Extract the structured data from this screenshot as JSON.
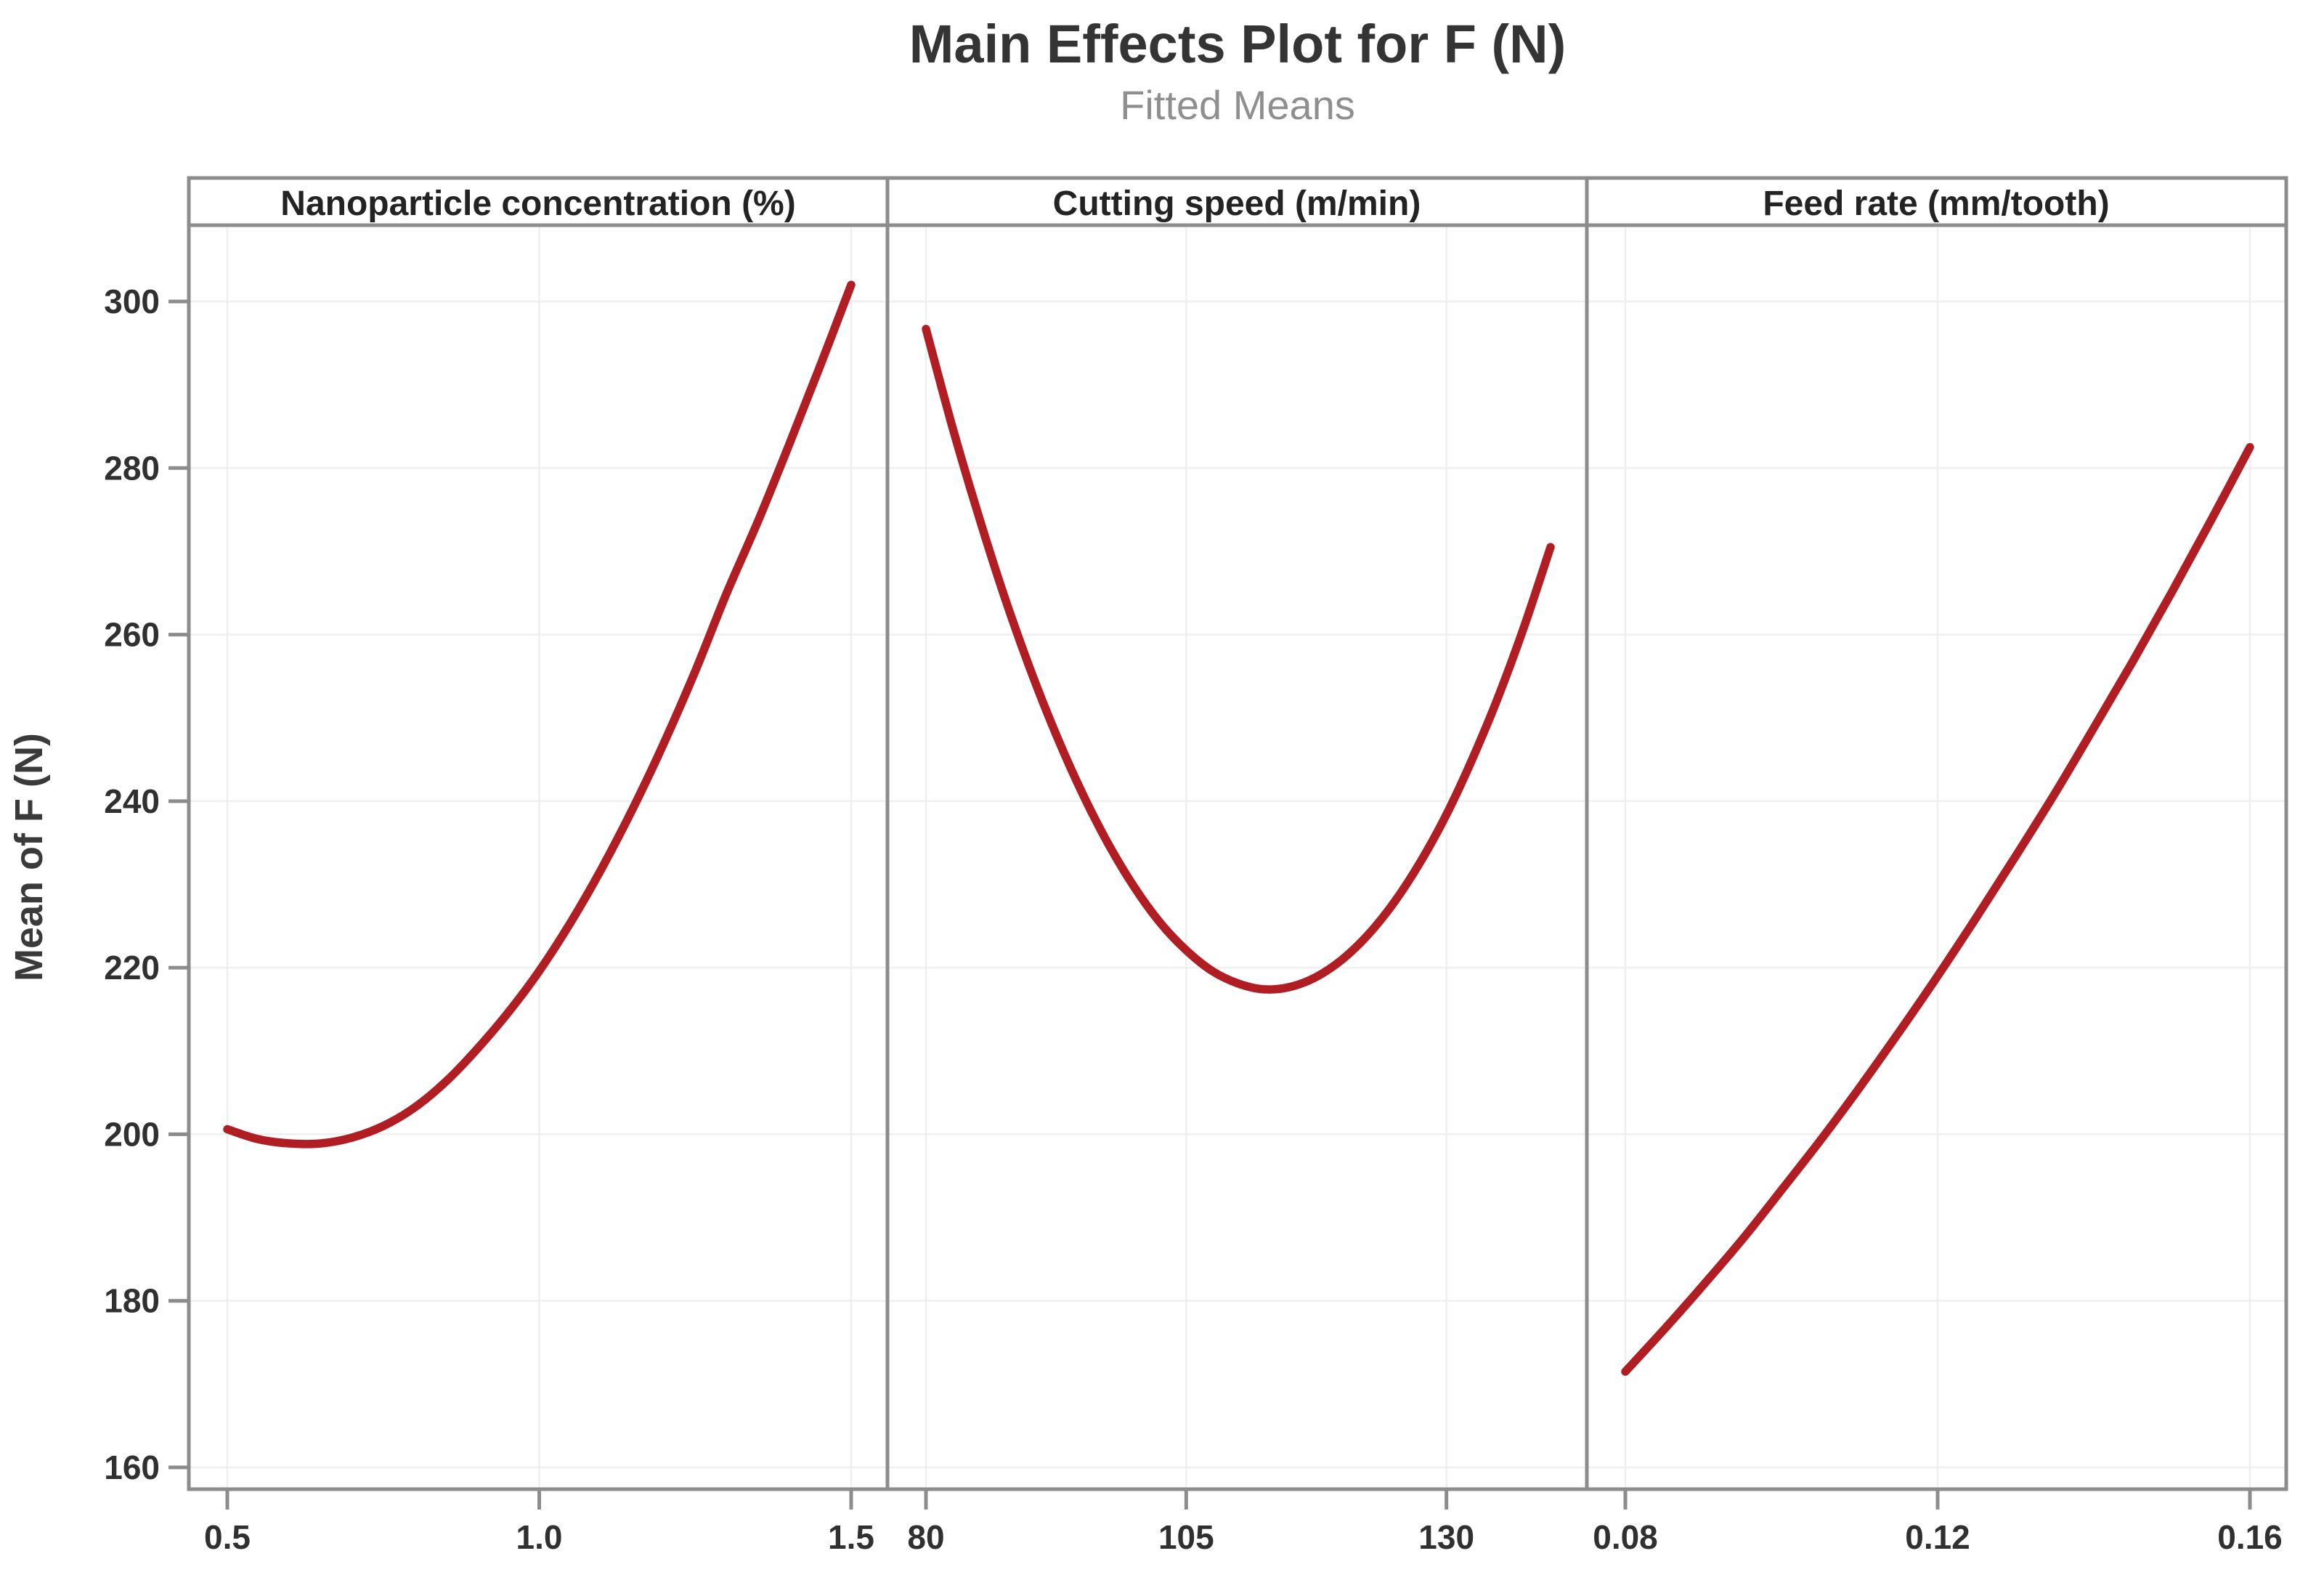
{
  "chart_data": {
    "type": "line",
    "title": "Main Effects Plot for F (N)",
    "subtitle": "Fitted Means",
    "ylabel": "Mean of F (N)",
    "y_axis": {
      "ticks": [
        "160",
        "180",
        "200",
        "220",
        "240",
        "260",
        "280",
        "300"
      ],
      "min": 160,
      "max": 300,
      "grid": true
    },
    "legend": "none",
    "line_color": "#B01E24",
    "panels": [
      {
        "label": "Nanoparticle concentration (%)",
        "x_range": [
          0.5,
          1.5
        ],
        "x_ticks": [
          {
            "value": 0.5,
            "label": "0.5"
          },
          {
            "value": 1.0,
            "label": "1.0"
          },
          {
            "value": 1.5,
            "label": "1.5"
          }
        ],
        "series": [
          [
            0.5,
            200.6
          ],
          [
            0.55,
            199.4
          ],
          [
            0.6,
            198.9
          ],
          [
            0.65,
            198.9
          ],
          [
            0.7,
            199.6
          ],
          [
            0.75,
            201.0
          ],
          [
            0.8,
            203.2
          ],
          [
            0.85,
            206.3
          ],
          [
            0.9,
            210.2
          ],
          [
            0.95,
            214.6
          ],
          [
            1.0,
            219.6
          ],
          [
            1.05,
            225.4
          ],
          [
            1.1,
            231.9
          ],
          [
            1.15,
            239.1
          ],
          [
            1.2,
            247.0
          ],
          [
            1.25,
            255.6
          ],
          [
            1.3,
            264.9
          ],
          [
            1.35,
            273.5
          ],
          [
            1.4,
            282.7
          ],
          [
            1.45,
            292.2
          ],
          [
            1.5,
            302.0
          ]
        ]
      },
      {
        "label": "Cutting speed (m/min)",
        "x_range": [
          80,
          140
        ],
        "x_ticks": [
          {
            "value": 80,
            "label": "80"
          },
          {
            "value": 105,
            "label": "105"
          },
          {
            "value": 130,
            "label": "130"
          }
        ],
        "series": [
          [
            80,
            296.7
          ],
          [
            82.5,
            285.1
          ],
          [
            85,
            274.5
          ],
          [
            87.5,
            264.7
          ],
          [
            90,
            255.9
          ],
          [
            92.5,
            248.0
          ],
          [
            95,
            241.0
          ],
          [
            97.5,
            234.9
          ],
          [
            100,
            229.7
          ],
          [
            102.5,
            225.4
          ],
          [
            105,
            222.1
          ],
          [
            107.5,
            219.6
          ],
          [
            110,
            218.1
          ],
          [
            112.5,
            217.4
          ],
          [
            115,
            217.7
          ],
          [
            117.5,
            218.9
          ],
          [
            120,
            221.0
          ],
          [
            122.5,
            224.0
          ],
          [
            125,
            227.9
          ],
          [
            127.5,
            232.7
          ],
          [
            130,
            238.4
          ],
          [
            132.5,
            245.1
          ],
          [
            135,
            252.6
          ],
          [
            137.5,
            261.1
          ],
          [
            140,
            270.5
          ]
        ]
      },
      {
        "label": "Feed rate (mm/tooth)",
        "x_range": [
          0.08,
          0.16
        ],
        "x_ticks": [
          {
            "value": 0.08,
            "label": "0.08"
          },
          {
            "value": 0.12,
            "label": "0.12"
          },
          {
            "value": 0.16,
            "label": "0.16"
          }
        ],
        "series": [
          [
            0.08,
            171.5
          ],
          [
            0.085,
            176.6
          ],
          [
            0.09,
            181.9
          ],
          [
            0.095,
            187.4
          ],
          [
            0.1,
            193.3
          ],
          [
            0.105,
            199.3
          ],
          [
            0.11,
            205.6
          ],
          [
            0.115,
            212.2
          ],
          [
            0.12,
            219.0
          ],
          [
            0.125,
            226.1
          ],
          [
            0.13,
            233.4
          ],
          [
            0.135,
            240.9
          ],
          [
            0.14,
            248.8
          ],
          [
            0.145,
            256.8
          ],
          [
            0.15,
            265.1
          ],
          [
            0.155,
            273.7
          ],
          [
            0.16,
            282.5
          ]
        ]
      }
    ]
  },
  "colors": {
    "background": "#FFFFFF",
    "line": "#B01E24",
    "axis": "#8C8C8C",
    "grid": "#EFEFEF",
    "title": "#343434",
    "subtitle": "#8F8F8F",
    "tick_label": "#303030",
    "header_text": "#232323",
    "axis_title": "#3A3A3A"
  }
}
